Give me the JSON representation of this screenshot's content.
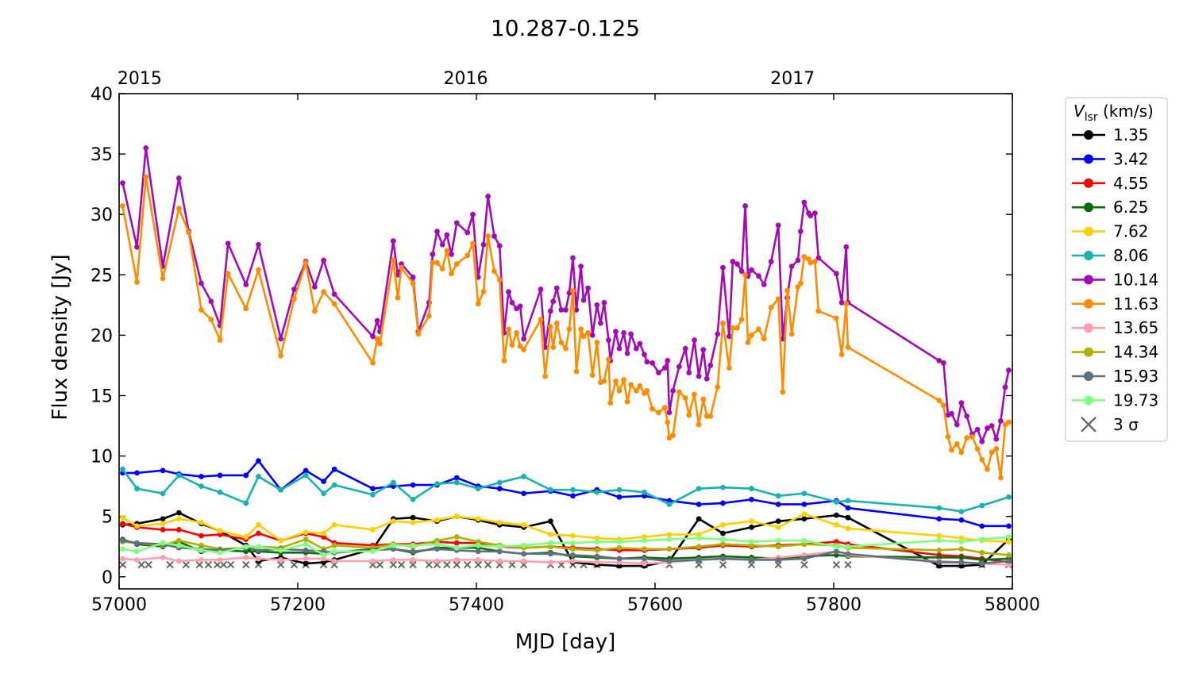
{
  "chart_data": {
    "type": "line",
    "title": "10.287-0.125",
    "xlabel": "MJD [day]",
    "ylabel": "Flux density [Jy]",
    "xlim": [
      57000,
      58000
    ],
    "ylim": [
      -1,
      40
    ],
    "xticks": [
      57000,
      57200,
      57400,
      57600,
      57800,
      58000
    ],
    "yticks": [
      0,
      5,
      10,
      15,
      20,
      25,
      30,
      35,
      40
    ],
    "top_axis": {
      "labels": [
        "2015",
        "2016",
        "2017"
      ],
      "mjd": [
        57023,
        57388,
        57754
      ]
    },
    "legend": {
      "title_main": "V",
      "title_sub": "lsr",
      "title_unit": " (km/s)",
      "placement": "outside-right",
      "sigma_label": "3 σ"
    },
    "x_offset": 57000,
    "grid_low": [
      4,
      20,
      49,
      67,
      92,
      113,
      142,
      156,
      181,
      209,
      229,
      241,
      284,
      307,
      329,
      356,
      378,
      402,
      426,
      453,
      483,
      508,
      535,
      560,
      588,
      616,
      649,
      676,
      708,
      738,
      767,
      803,
      816,
      918,
      943,
      966,
      996
    ],
    "grid_high": [
      4,
      20,
      30,
      49,
      67,
      78,
      92,
      103,
      113,
      122,
      142,
      156,
      181,
      196,
      209,
      219,
      229,
      241,
      284,
      289,
      292,
      307,
      312,
      316,
      329,
      335,
      347,
      351,
      356,
      362,
      367,
      372,
      378,
      390,
      396,
      402,
      408,
      413,
      420,
      426,
      431,
      436,
      440,
      445,
      449,
      453,
      472,
      477,
      483,
      486,
      490,
      495,
      500,
      504,
      508,
      512,
      517,
      520,
      525,
      530,
      535,
      539,
      543,
      548,
      550,
      556,
      560,
      565,
      569,
      573,
      579,
      583,
      588,
      591,
      597,
      604,
      611,
      614,
      616,
      620,
      627,
      634,
      638,
      644,
      649,
      654,
      658,
      662,
      670,
      676,
      683,
      687,
      692,
      697,
      701,
      704,
      708,
      716,
      722,
      730,
      738,
      743,
      748,
      753,
      760,
      763,
      767,
      772,
      774,
      779,
      783,
      803,
      809,
      814,
      816,
      918,
      923,
      928,
      932,
      938,
      943,
      949,
      955,
      961,
      966,
      972,
      977,
      982,
      987,
      992,
      996
    ],
    "series": [
      {
        "name": "1.35",
        "color": "#000000",
        "grid": "low",
        "values": [
          4.3,
          4.4,
          4.8,
          5.3,
          4.4,
          3.8,
          2.6,
          1.3,
          1.6,
          1.1,
          1.2,
          1.4,
          2.3,
          4.8,
          4.9,
          4.6,
          5.0,
          4.7,
          4.3,
          4.1,
          4.6,
          1.2,
          1.0,
          0.9,
          0.9,
          1.3,
          4.8,
          3.6,
          4.1,
          4.6,
          4.8,
          5.1,
          4.9,
          0.9,
          0.9,
          1.0,
          3.1
        ]
      },
      {
        "name": "3.42",
        "color": "#0000ff",
        "grid": "low",
        "values": [
          8.6,
          8.6,
          8.8,
          8.5,
          8.3,
          8.4,
          8.4,
          9.6,
          7.2,
          8.8,
          7.9,
          8.9,
          7.3,
          7.5,
          7.6,
          7.6,
          8.2,
          7.5,
          7.3,
          6.9,
          7.1,
          6.7,
          7.2,
          6.6,
          6.7,
          6.3,
          6.0,
          6.1,
          6.4,
          6.0,
          6.0,
          6.3,
          5.7,
          4.8,
          4.7,
          4.2,
          4.2
        ]
      },
      {
        "name": "4.55",
        "color": "#ff0000",
        "grid": "low",
        "values": [
          4.4,
          4.1,
          3.9,
          3.9,
          3.4,
          3.5,
          3.1,
          3.6,
          3.0,
          3.6,
          3.3,
          2.8,
          2.6,
          2.7,
          2.7,
          2.9,
          2.8,
          2.8,
          2.5,
          2.4,
          2.5,
          2.4,
          2.3,
          2.2,
          2.2,
          2.3,
          2.4,
          2.6,
          2.5,
          2.6,
          2.7,
          2.9,
          2.7,
          1.8,
          1.7,
          1.5,
          1.2
        ]
      },
      {
        "name": "6.25",
        "color": "#0b6b0b",
        "grid": "low",
        "values": [
          3.1,
          2.7,
          2.5,
          2.9,
          2.1,
          2.2,
          2.1,
          2.1,
          2.0,
          2.0,
          1.9,
          2.0,
          2.3,
          2.3,
          2.0,
          2.4,
          2.4,
          2.4,
          2.1,
          1.9,
          2.0,
          1.7,
          1.6,
          1.5,
          1.6,
          1.5,
          1.6,
          1.7,
          1.6,
          1.5,
          1.7,
          1.8,
          1.7,
          1.6,
          1.6,
          1.4,
          1.5
        ]
      },
      {
        "name": "7.62",
        "color": "#ffd000",
        "grid": "low",
        "values": [
          4.9,
          4.2,
          4.4,
          4.8,
          4.5,
          3.8,
          3.3,
          4.3,
          3.0,
          3.7,
          3.6,
          4.3,
          3.9,
          4.6,
          4.5,
          4.7,
          5.0,
          4.8,
          4.5,
          4.3,
          3.5,
          3.4,
          3.2,
          3.1,
          3.3,
          3.5,
          3.5,
          4.3,
          4.6,
          4.1,
          5.2,
          4.3,
          4.0,
          3.4,
          3.2,
          3.0,
          2.9
        ]
      },
      {
        "name": "8.06",
        "color": "#17b3b0",
        "grid": "low",
        "values": [
          8.9,
          7.3,
          6.9,
          8.4,
          7.5,
          7.0,
          6.1,
          8.3,
          7.2,
          8.4,
          6.9,
          7.6,
          6.8,
          7.8,
          6.4,
          7.7,
          7.8,
          7.3,
          7.8,
          8.3,
          7.2,
          7.2,
          7.0,
          7.2,
          7.0,
          6.0,
          7.3,
          7.4,
          7.3,
          6.7,
          6.9,
          6.2,
          6.3,
          5.7,
          5.4,
          5.9,
          6.6
        ]
      },
      {
        "name": "10.14",
        "color": "#a30bb5",
        "grid": "high",
        "values": [
          32.6,
          27.3,
          35.5,
          25.7,
          33.0,
          28.6,
          24.3,
          22.8,
          20.8,
          27.6,
          24.2,
          27.5,
          19.7,
          23.8,
          26.1,
          24.0,
          26.2,
          23.4,
          19.9,
          21.2,
          20.3,
          27.8,
          25.0,
          25.9,
          24.8,
          20.3,
          22.7,
          26.7,
          28.6,
          27.5,
          28.3,
          26.7,
          29.3,
          28.5,
          30.0,
          24.8,
          27.5,
          31.5,
          28.2,
          27.4,
          20.2,
          23.6,
          22.7,
          22.2,
          22.4,
          19.7,
          23.8,
          19.0,
          22.0,
          22.8,
          23.9,
          22.1,
          22.1,
          23.5,
          26.4,
          22.1,
          25.7,
          22.9,
          23.9,
          20.0,
          22.5,
          21.0,
          22.7,
          19.6,
          17.9,
          20.3,
          18.9,
          20.2,
          18.5,
          20.1,
          18.9,
          19.3,
          18.4,
          17.8,
          17.7,
          16.9,
          17.3,
          17.9,
          13.6,
          15.4,
          17.4,
          18.9,
          16.9,
          19.6,
          16.6,
          18.8,
          16.4,
          17.5,
          20.1,
          25.6,
          19.9,
          26.1,
          25.9,
          25.3,
          30.7,
          24.9,
          25.4,
          24.9,
          24.2,
          26.1,
          29.1,
          19.7,
          23.1,
          25.7,
          26.2,
          28.6,
          31.0,
          30.1,
          29.9,
          30.1,
          26.4,
          25.1,
          22.7,
          27.3,
          22.7,
          17.9,
          17.7,
          13.4,
          13.5,
          12.6,
          14.4,
          13.3,
          11.8,
          12.2,
          11.2,
          12.3,
          12.5,
          11.4,
          12.9,
          15.7,
          17.1
        ]
      },
      {
        "name": "11.63",
        "color": "#ff8c00",
        "grid": "high",
        "values": [
          30.7,
          24.4,
          33.1,
          24.7,
          30.5,
          28.5,
          22.1,
          21.3,
          19.6,
          25.1,
          22.2,
          25.4,
          18.3,
          23.0,
          26.0,
          22.0,
          23.6,
          22.6,
          17.7,
          19.7,
          19.3,
          26.2,
          23.1,
          25.6,
          24.3,
          20.1,
          21.6,
          26.0,
          26.0,
          25.5,
          27.0,
          25.1,
          25.9,
          26.6,
          27.6,
          22.6,
          23.6,
          28.2,
          25.3,
          24.6,
          17.9,
          20.5,
          19.2,
          20.2,
          19.1,
          18.8,
          21.3,
          16.6,
          20.7,
          19.0,
          21.0,
          19.4,
          18.9,
          20.5,
          23.7,
          17.0,
          20.5,
          19.9,
          20.2,
          16.7,
          19.4,
          16.1,
          16.2,
          18.0,
          14.4,
          16.2,
          15.4,
          16.3,
          14.5,
          15.9,
          15.4,
          15.8,
          15.2,
          15.4,
          13.9,
          13.6,
          14.0,
          12.8,
          11.5,
          11.7,
          15.3,
          14.8,
          13.4,
          15.1,
          12.6,
          14.7,
          13.3,
          13.3,
          15.7,
          21.0,
          17.3,
          20.6,
          20.6,
          21.3,
          25.0,
          19.4,
          20.0,
          20.5,
          19.7,
          22.3,
          23.0,
          15.3,
          23.7,
          20.1,
          24.0,
          24.3,
          26.5,
          26.3,
          26.0,
          26.1,
          22.0,
          21.4,
          18.4,
          22.6,
          19.0,
          14.6,
          14.2,
          11.6,
          10.5,
          11.0,
          10.3,
          11.5,
          11.6,
          10.6,
          9.7,
          8.9,
          10.3,
          10.6,
          8.2,
          12.6,
          12.8
        ]
      },
      {
        "name": "13.65",
        "color": "#ffa0b0",
        "grid": "low",
        "values": [
          1.5,
          1.4,
          1.6,
          1.3,
          1.4,
          1.4,
          1.6,
          1.5,
          1.4,
          1.5,
          1.5,
          1.3,
          1.3,
          1.4,
          1.4,
          1.3,
          1.4,
          1.4,
          1.3,
          1.3,
          1.2,
          1.3,
          1.2,
          1.2,
          1.1,
          1.2,
          1.4,
          1.5,
          1.4,
          1.6,
          1.8,
          2.1,
          1.8,
          1.3,
          1.2,
          1.1,
          1.0
        ]
      },
      {
        "name": "14.34",
        "color": "#b0b000",
        "grid": "low",
        "values": [
          2.9,
          2.8,
          2.6,
          3.0,
          2.6,
          2.3,
          2.4,
          2.5,
          2.4,
          3.1,
          2.3,
          2.6,
          2.4,
          2.7,
          2.5,
          3.0,
          3.3,
          2.9,
          2.6,
          2.4,
          2.5,
          2.3,
          2.2,
          2.4,
          2.3,
          2.3,
          2.5,
          2.7,
          2.6,
          2.5,
          2.7,
          2.6,
          2.4,
          2.2,
          2.3,
          2.0,
          1.8
        ]
      },
      {
        "name": "15.93",
        "color": "#607080",
        "grid": "low",
        "values": [
          3.0,
          2.8,
          2.7,
          2.4,
          2.3,
          2.2,
          2.4,
          2.2,
          2.3,
          2.2,
          2.1,
          2.0,
          2.2,
          2.3,
          2.1,
          2.3,
          2.2,
          2.1,
          2.1,
          1.9,
          1.9,
          1.8,
          1.7,
          1.5,
          1.5,
          1.3,
          1.4,
          1.5,
          1.4,
          1.4,
          1.5,
          2.1,
          1.9,
          1.2,
          1.2,
          1.1,
          1.3
        ]
      },
      {
        "name": "19.73",
        "color": "#80ff80",
        "grid": "low",
        "values": [
          2.3,
          2.1,
          2.8,
          2.6,
          2.2,
          2.0,
          2.5,
          2.5,
          2.2,
          2.7,
          1.8,
          2.1,
          2.1,
          2.6,
          2.6,
          2.7,
          2.4,
          2.6,
          2.5,
          2.6,
          2.8,
          2.8,
          2.9,
          2.9,
          3.0,
          3.1,
          3.2,
          3.1,
          2.9,
          3.0,
          3.0,
          2.5,
          2.5,
          3.0,
          2.9,
          3.1,
          3.3
        ]
      }
    ],
    "sigma_points": {
      "color": "#666666",
      "value": 1.0,
      "x": [
        4,
        25,
        33,
        57,
        75,
        90,
        100,
        110,
        117,
        125,
        142,
        156,
        181,
        196,
        209,
        229,
        241,
        284,
        292,
        307,
        316,
        329,
        347,
        356,
        367,
        378,
        390,
        402,
        413,
        426,
        440,
        453,
        483,
        495,
        508,
        520,
        535,
        560,
        588,
        616,
        649,
        676,
        708,
        738,
        767,
        803,
        816,
        918,
        943,
        966,
        996
      ]
    }
  }
}
